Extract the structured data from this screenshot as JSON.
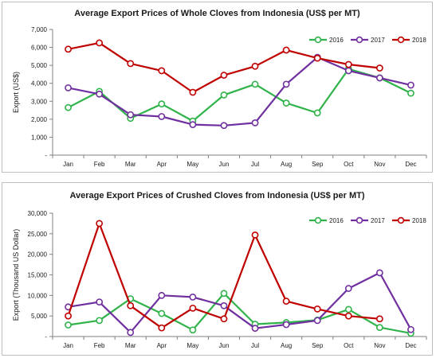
{
  "colors": {
    "2016": "#2fb34a",
    "2017": "#7030a0",
    "2018": "#c00000",
    "axis": "#808080"
  },
  "chart_data": [
    {
      "type": "line",
      "title": "Average Export Prices of Whole Cloves from Indonesia (US$ per MT)",
      "ylabel": "Export (US$)",
      "xlabel": "",
      "categories": [
        "Jan",
        "Feb",
        "Mar",
        "Apr",
        "May",
        "Jun",
        "Jul",
        "Aug",
        "Sep",
        "Oct",
        "Nov",
        "Dec"
      ],
      "ylim": [
        0,
        7000
      ],
      "yticks": [
        0,
        1000,
        2000,
        3000,
        4000,
        5000,
        6000,
        7000
      ],
      "ytick_labels": [
        "-",
        "1,000",
        "2,000",
        "3,000",
        "4,000",
        "5,000",
        "6,000",
        "7,000"
      ],
      "legend": "top-right",
      "grid": false,
      "series": [
        {
          "name": "2016",
          "values": [
            2650,
            3550,
            2050,
            2850,
            1900,
            3350,
            3950,
            2900,
            2350,
            4800,
            4300,
            3450
          ]
        },
        {
          "name": "2017",
          "values": [
            3750,
            3400,
            2250,
            2150,
            1700,
            1650,
            1800,
            3950,
            5450,
            4700,
            4300,
            3900
          ]
        },
        {
          "name": "2018",
          "values": [
            5900,
            6250,
            5100,
            4700,
            3500,
            4450,
            4950,
            5850,
            5400,
            5050,
            4850,
            null
          ]
        }
      ]
    },
    {
      "type": "line",
      "title": "Average Export Prices of Crushed Cloves from Indonesia (US$ per MT)",
      "ylabel": "Export (Thousand US Dollar)",
      "xlabel": "",
      "categories": [
        "Jan",
        "Feb",
        "Mar",
        "Apr",
        "May",
        "Jun",
        "Jul",
        "Aug",
        "Sep",
        "Oct",
        "Nov",
        "Dec"
      ],
      "ylim": [
        0,
        30000
      ],
      "yticks": [
        0,
        5000,
        10000,
        15000,
        20000,
        25000,
        30000
      ],
      "ytick_labels": [
        "-",
        "5,000",
        "10,000",
        "15,000",
        "20,000",
        "25,000",
        "30,000"
      ],
      "legend": "top-right",
      "grid": false,
      "series": [
        {
          "name": "2016",
          "values": [
            2800,
            3900,
            9200,
            5600,
            1600,
            10500,
            3000,
            3400,
            4000,
            6600,
            2200,
            800
          ]
        },
        {
          "name": "2017",
          "values": [
            7200,
            8400,
            1000,
            10000,
            9600,
            7500,
            2000,
            2900,
            3900,
            11700,
            15500,
            1700
          ]
        },
        {
          "name": "2018",
          "values": [
            5000,
            27500,
            7500,
            2100,
            6900,
            4300,
            24700,
            8600,
            6700,
            5000,
            4300,
            null
          ]
        }
      ]
    }
  ]
}
